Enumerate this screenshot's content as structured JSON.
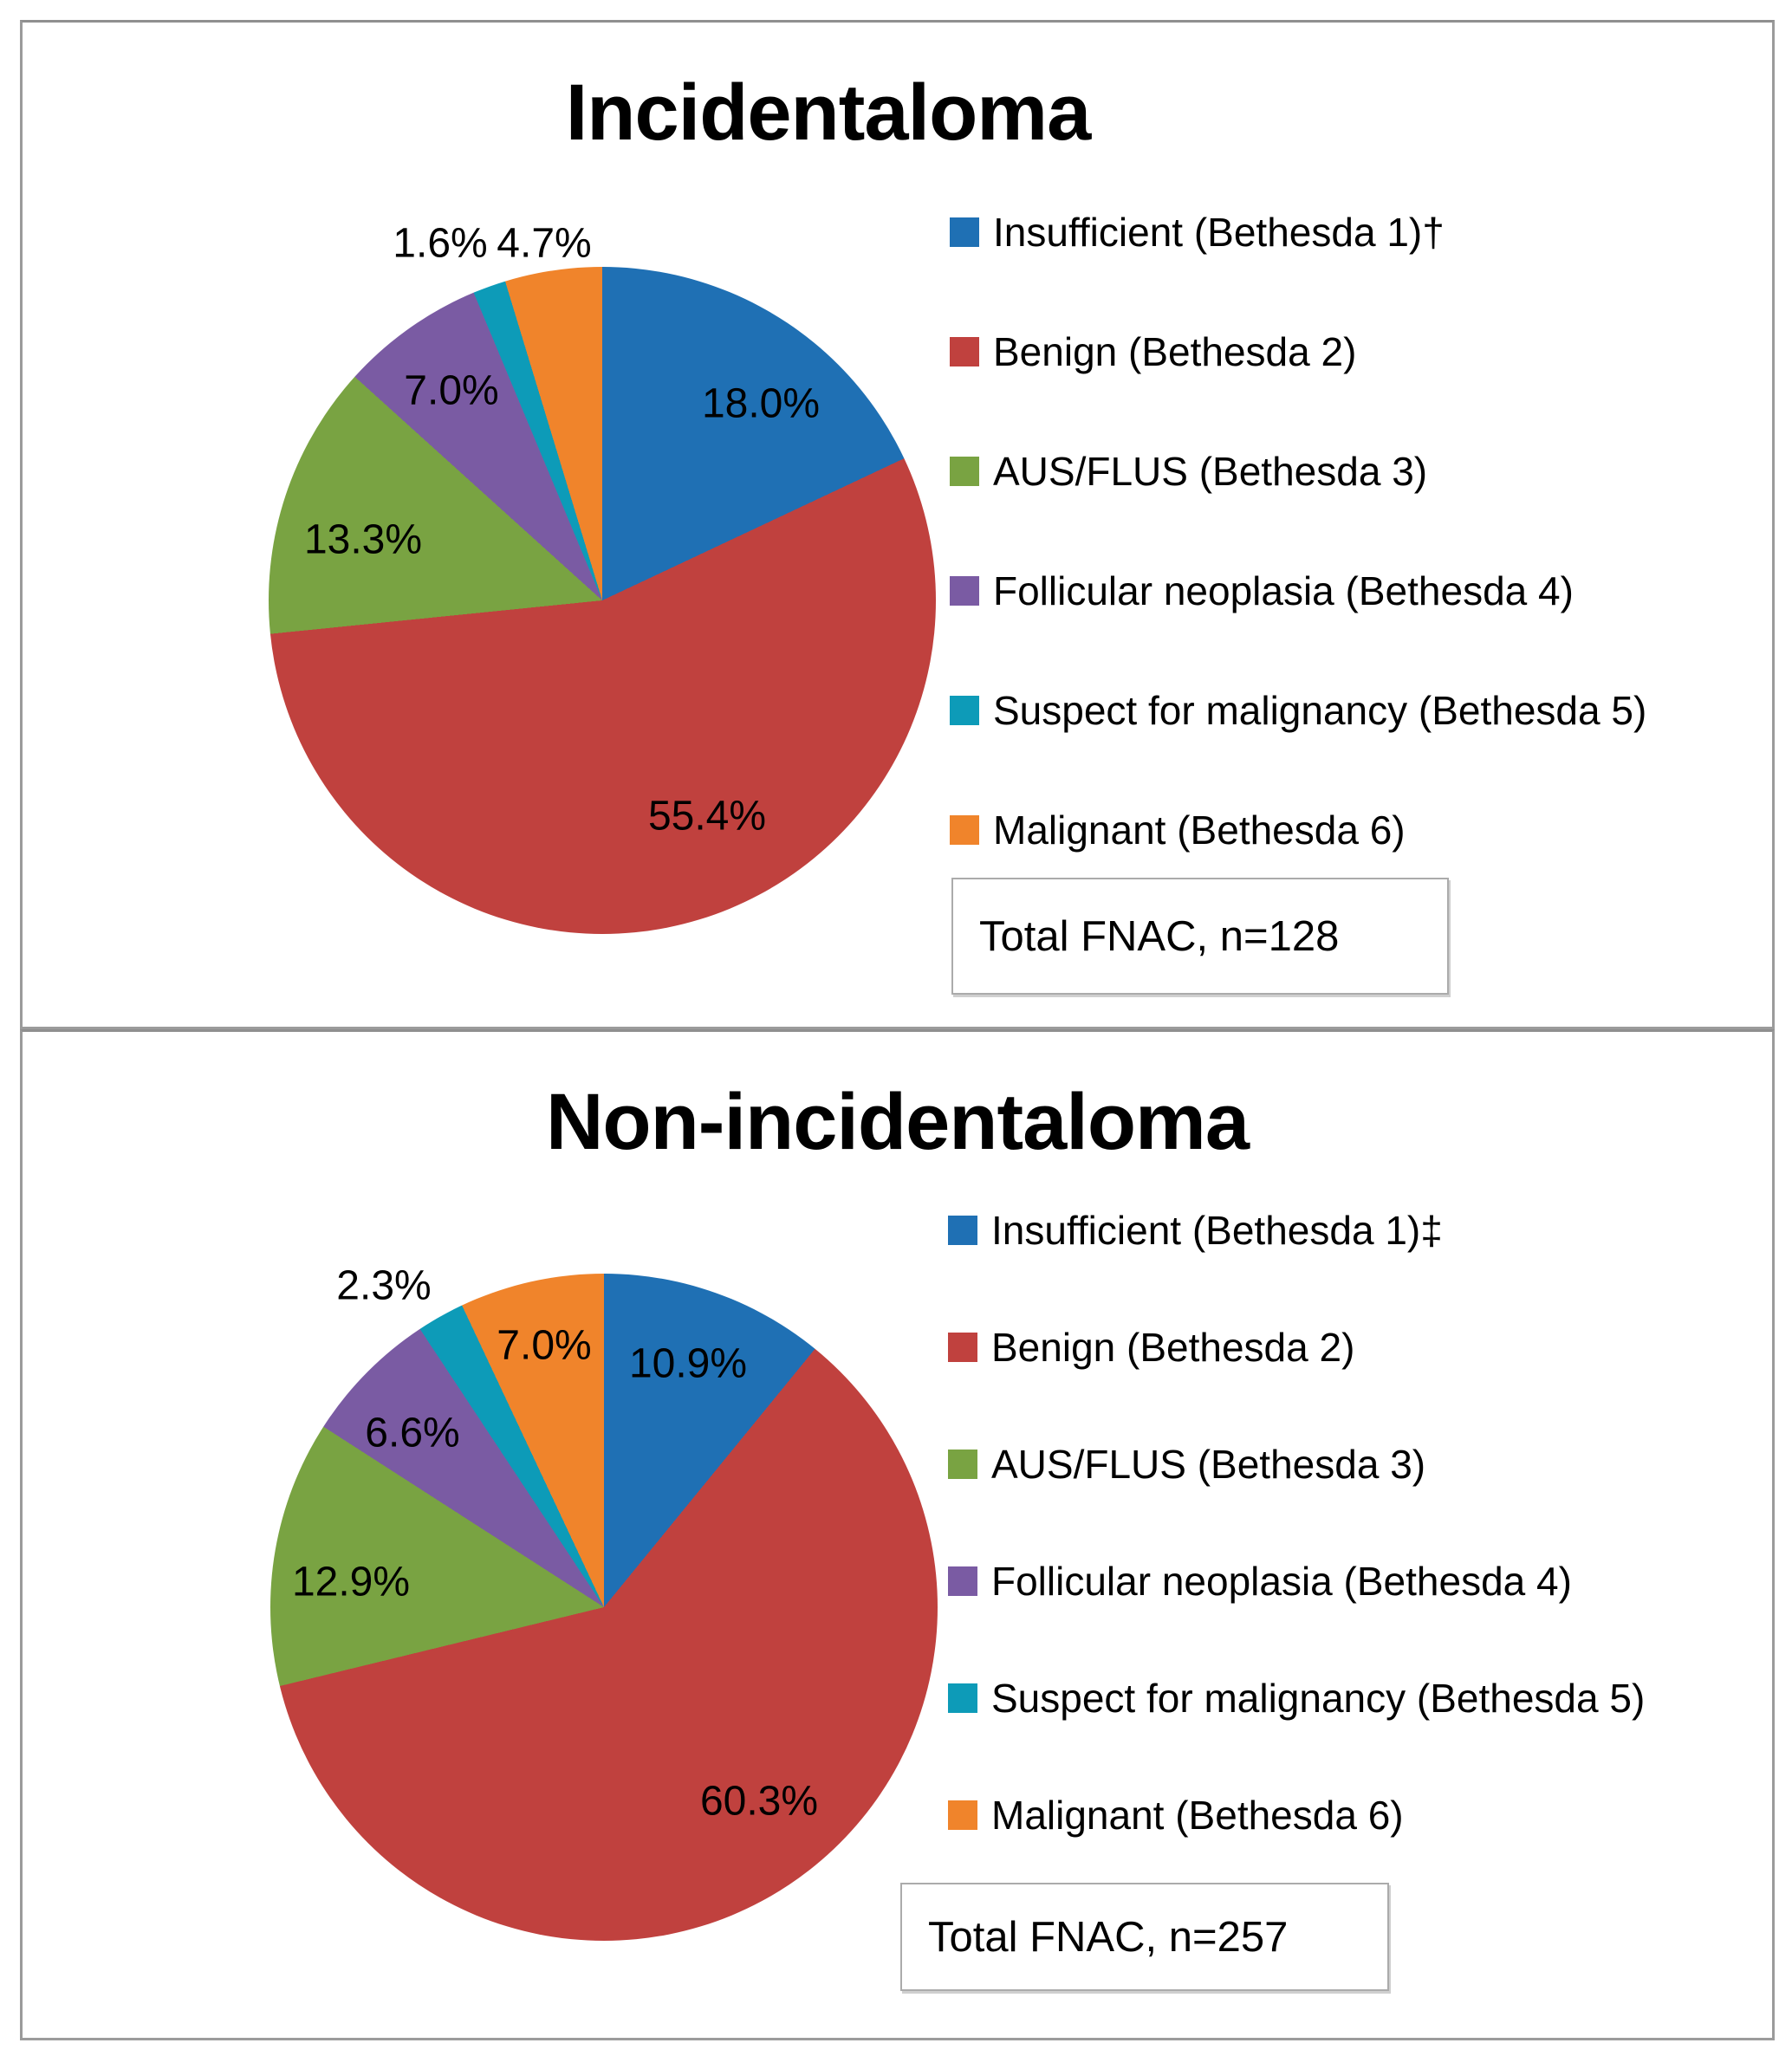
{
  "chart_data": [
    {
      "type": "pie",
      "title": "Incidentaloma",
      "categories": [
        "Insufficient (Bethesda 1)†",
        "Benign (Bethesda 2)",
        "AUS/FLUS (Bethesda 3)",
        "Follicular neoplasia (Bethesda 4)",
        "Suspect for malignancy (Bethesda 5)",
        "Malignant (Bethesda 6)"
      ],
      "values": [
        18.0,
        55.4,
        13.3,
        7.0,
        1.6,
        4.7
      ],
      "labels": [
        "18.0%",
        "55.4%",
        "13.3%",
        "7.0%",
        "1.6%",
        "4.7%"
      ],
      "colors": [
        "#1F70B4",
        "#C0413E",
        "#79A342",
        "#7A5BA3",
        "#0D9BB8",
        "#F0842B"
      ],
      "start_angle_deg": 0,
      "direction": "clockwise",
      "legend_position": "right",
      "total_n": 128,
      "annotation": "Total FNAC, n=128"
    },
    {
      "type": "pie",
      "title": "Non-incidentaloma",
      "categories": [
        "Insufficient (Bethesda 1)‡",
        "Benign (Bethesda 2)",
        "AUS/FLUS (Bethesda 3)",
        "Follicular neoplasia (Bethesda 4)",
        "Suspect for malignancy (Bethesda 5)",
        "Malignant (Bethesda 6)"
      ],
      "values": [
        10.9,
        60.3,
        12.9,
        6.6,
        2.3,
        7.0
      ],
      "labels": [
        "10.9%",
        "60.3%",
        "12.9%",
        "6.6%",
        "2.3%",
        "7.0%"
      ],
      "colors": [
        "#1F70B4",
        "#C0413E",
        "#79A342",
        "#7A5BA3",
        "#0D9BB8",
        "#F0842B"
      ],
      "start_angle_deg": 0,
      "direction": "clockwise",
      "legend_position": "right",
      "total_n": 257,
      "annotation": "Total FNAC, n=257"
    }
  ]
}
